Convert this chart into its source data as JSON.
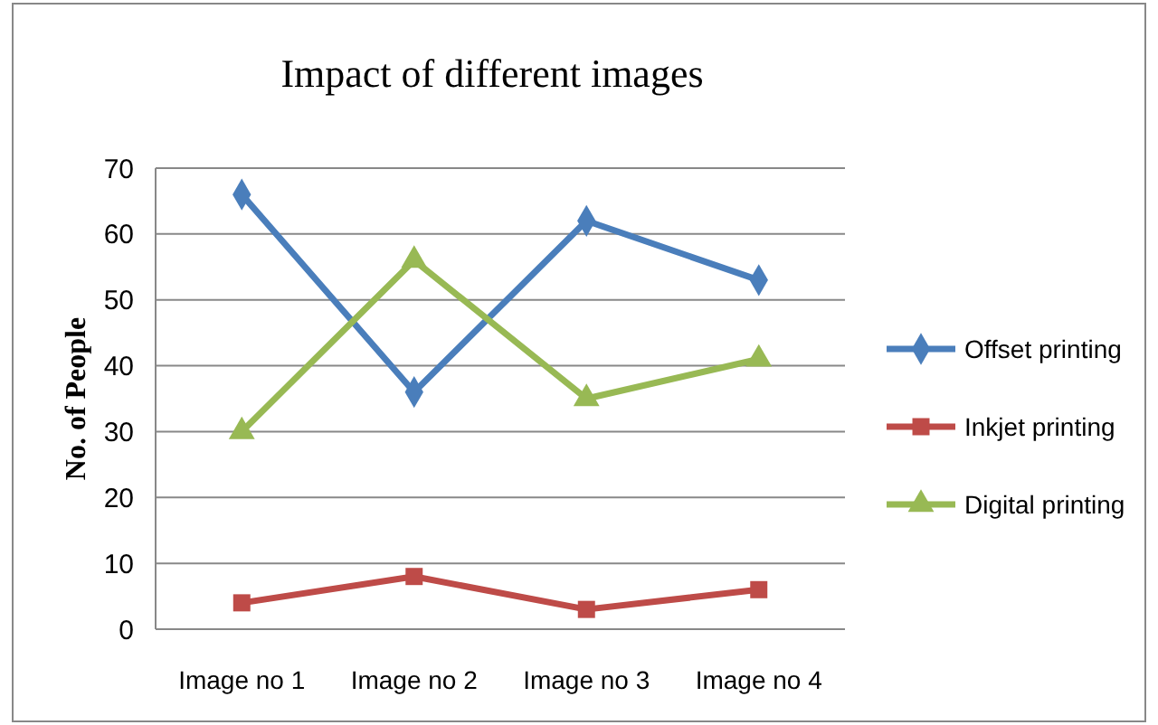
{
  "chart_data": {
    "type": "line",
    "title": "Impact of different images",
    "ylabel": "No. of People",
    "categories": [
      "Image no 1",
      "Image no 2",
      "Image no 3",
      "Image no 4"
    ],
    "ylim": [
      0,
      70
    ],
    "yticks": [
      0,
      10,
      20,
      30,
      40,
      50,
      60,
      70
    ],
    "grid": "y",
    "legend": "right",
    "line_style": "solid",
    "series": [
      {
        "name": "Offset printing",
        "color": "#4a7ebb",
        "marker": "diamond",
        "values": [
          66,
          36,
          62,
          53
        ]
      },
      {
        "name": "Inkjet printing",
        "color": "#be4b48",
        "marker": "square",
        "values": [
          4,
          8,
          3,
          6
        ]
      },
      {
        "name": "Digital printing",
        "color": "#98b954",
        "marker": "triangle",
        "values": [
          30,
          56,
          35,
          41
        ]
      }
    ]
  }
}
